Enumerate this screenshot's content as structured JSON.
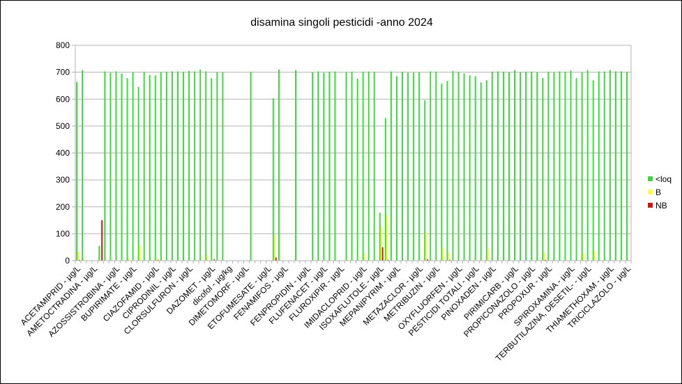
{
  "chart_data": {
    "type": "bar",
    "title": "disamina singoli pesticidi -anno 2024",
    "xlabel": "",
    "ylabel": "",
    "ylim": [
      0,
      800
    ],
    "yticks": [
      0,
      100,
      200,
      300,
      400,
      500,
      600,
      700,
      800
    ],
    "grid": true,
    "legend_position": "right",
    "colors": {
      "<loq": "#33dd33",
      "B": "#ffff33",
      "NB": "#dd1111"
    },
    "tick_labels": [
      "ACETAMIPRID - µg/L",
      "AMETOCTRADINA - µg/L",
      "AZOSSISTROBINA - µg/L",
      "BUPIRIMATE - µg/L",
      "CIAZOFAMID - µg/L",
      "CIPRODINIL - µg/L",
      "CLORSULFURON - µg/L",
      "DAZOMET - µg/L",
      "dicofol - µg/kg",
      "DIMETOMORF - µg/L",
      "ETOFUMESATE - µg/L",
      "FENAMIFOS - µg/L",
      "FENPROPIDIN - µg/L",
      "FLUFENACET - µg/L",
      "FLUROXIPIR - µg/L",
      "IMIDACLOPRID - µg/L",
      "ISOXAFLUTOLE - µg/L",
      "MEPANIPYRIM - µg/L",
      "METAZACLOR - µg/L",
      "METRIBUZIN - µg/L",
      "OXYFLUORFEN - µg/L",
      "PESTICIDI TOTALI - µg/L",
      "PINOXADEN - µg/L",
      "PIRIMICARB - µg/L",
      "PROPICONAZOLO - µg/L",
      "PROPOXUR - µg/L",
      "SPIROXAMINA - µg/L",
      "TERBUTILAZINA, DESETIL- - µg/L",
      "THIAMETHOXAM - µg/L",
      "TRICICLAZOLO - µg/L"
    ],
    "series": [
      {
        "name": "<loq",
        "values": [
          664,
          708,
          0,
          0,
          55,
          703,
          698,
          703,
          695,
          678,
          700,
          645,
          702,
          690,
          688,
          700,
          702,
          703,
          703,
          701,
          705,
          703,
          710,
          703,
          678,
          700,
          700,
          0,
          0,
          0,
          0,
          702,
          0,
          0,
          0,
          603,
          710,
          0,
          0,
          708,
          0,
          0,
          700,
          703,
          698,
          702,
          703,
          0,
          700,
          702,
          676,
          702,
          703,
          702,
          178,
          530,
          703,
          685,
          702,
          698,
          698,
          700,
          596,
          703,
          702,
          658,
          668,
          705,
          702,
          695,
          688,
          685,
          662,
          670,
          702,
          703,
          702,
          700,
          708,
          700,
          702,
          702,
          700,
          678,
          702,
          700,
          703,
          702,
          706,
          678,
          700,
          708,
          670,
          703,
          703,
          708,
          703,
          703,
          702
        ]
      },
      {
        "name": "B",
        "values": [
          33,
          5,
          0,
          0,
          0,
          0,
          0,
          0,
          0,
          8,
          0,
          55,
          0,
          0,
          7,
          0,
          0,
          0,
          0,
          0,
          0,
          0,
          0,
          20,
          0,
          0,
          0,
          0,
          0,
          0,
          0,
          0,
          0,
          0,
          0,
          95,
          0,
          0,
          0,
          0,
          0,
          0,
          0,
          0,
          0,
          0,
          0,
          0,
          3,
          0,
          0,
          25,
          0,
          0,
          125,
          170,
          0,
          0,
          0,
          0,
          0,
          0,
          105,
          0,
          0,
          48,
          30,
          0,
          0,
          0,
          0,
          0,
          0,
          45,
          0,
          0,
          0,
          0,
          0,
          0,
          0,
          0,
          0,
          30,
          0,
          0,
          0,
          0,
          0,
          0,
          25,
          0,
          35,
          0,
          0,
          0,
          0,
          0,
          0
        ]
      },
      {
        "name": "NB",
        "values": [
          3,
          0,
          0,
          0,
          150,
          0,
          0,
          0,
          0,
          0,
          0,
          0,
          0,
          0,
          3,
          0,
          0,
          0,
          0,
          0,
          0,
          0,
          0,
          0,
          5,
          0,
          0,
          0,
          0,
          0,
          0,
          0,
          0,
          0,
          0,
          12,
          0,
          0,
          0,
          0,
          0,
          0,
          0,
          0,
          0,
          0,
          0,
          0,
          0,
          0,
          0,
          0,
          0,
          0,
          50,
          3,
          0,
          0,
          0,
          0,
          0,
          0,
          5,
          0,
          0,
          0,
          3,
          0,
          0,
          0,
          0,
          0,
          0,
          0,
          0,
          0,
          0,
          0,
          0,
          0,
          0,
          0,
          0,
          3,
          0,
          0,
          0,
          0,
          0,
          0,
          0,
          0,
          0,
          0,
          0,
          0,
          0,
          0,
          0
        ]
      }
    ]
  }
}
